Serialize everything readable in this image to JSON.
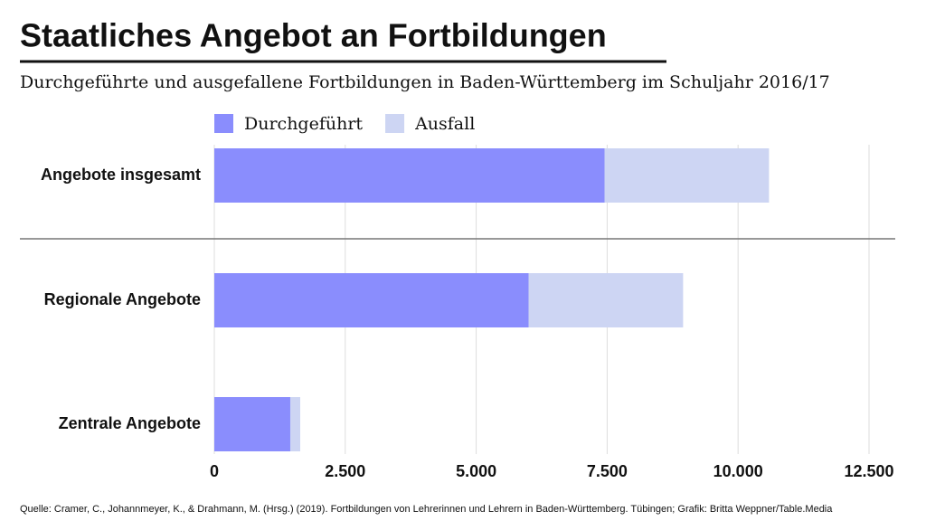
{
  "chart_data": {
    "type": "bar",
    "orientation": "horizontal",
    "stacked": true,
    "title": "Staatliches Angebot an Fortbildungen",
    "subtitle": "Durchgeführte und ausgefallene Fortbildungen in Baden-Württemberg im Schuljahr 2016/17",
    "categories": [
      "Angebote insgesamt",
      "Regionale Angebote",
      "Zentrale Angebote"
    ],
    "series": [
      {
        "name": "Durchgeführt",
        "color": "#8a8dfd",
        "values": [
          7450,
          6000,
          1450
        ]
      },
      {
        "name": "Ausfall",
        "color": "#cdd5f3",
        "values": [
          3140,
          2950,
          190
        ]
      }
    ],
    "xlim": [
      0,
      12500
    ],
    "xticks": [
      0,
      {
        "value": 2500,
        "label": "2.500"
      },
      {
        "value": 5000,
        "label": "5.000"
      },
      {
        "value": 7500,
        "label": "7.500"
      },
      {
        "value": 10000,
        "label": "10.000"
      },
      {
        "value": 12500,
        "label": "12.500"
      }
    ],
    "grid": true,
    "source": "Quelle: Cramer, C., Johannmeyer, K., & Drahmann, M. (Hrsg.) (2019). Fortbildungen von Lehrerinnen und Lehrern in Baden-Württemberg. Tübingen; Grafik: Britta Weppner/Table.Media"
  }
}
